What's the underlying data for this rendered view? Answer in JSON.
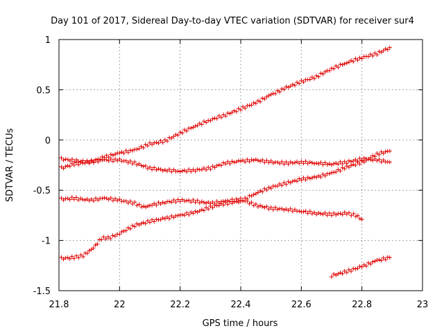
{
  "chart_data": {
    "type": "scatter",
    "title": "Day 101 of 2017, Sidereal Day-to-day VTEC variation (SDTVAR) for receiver sur4",
    "xlabel": "GPS time / hours",
    "ylabel": "SDTVAR / TECUs",
    "xlim": [
      21.8,
      23
    ],
    "ylim": [
      -1.5,
      1
    ],
    "xticks": [
      21.8,
      22,
      22.2,
      22.4,
      22.6,
      22.8,
      23
    ],
    "xtick_labels": [
      "21.8",
      "22",
      "22.2",
      "22.4",
      "22.6",
      "22.8",
      "23"
    ],
    "yticks": [
      -1.5,
      -1,
      -0.5,
      0,
      0.5,
      1
    ],
    "ytick_labels": [
      "-1.5",
      "-1",
      "-0.5",
      "0",
      "0.5",
      "1"
    ],
    "grid": true,
    "marker": "plus",
    "color": "#e00000",
    "series": [
      {
        "name": "rising",
        "points": [
          [
            21.808,
            -0.19
          ],
          [
            21.9,
            -0.22
          ],
          [
            21.95,
            -0.17
          ],
          [
            22.0,
            -0.13
          ],
          [
            22.05,
            -0.1
          ],
          [
            22.1,
            -0.04
          ],
          [
            22.15,
            -0.01
          ],
          [
            22.2,
            0.07
          ],
          [
            22.25,
            0.14
          ],
          [
            22.3,
            0.2
          ],
          [
            22.35,
            0.25
          ],
          [
            22.4,
            0.31
          ],
          [
            22.45,
            0.37
          ],
          [
            22.5,
            0.45
          ],
          [
            22.55,
            0.52
          ],
          [
            22.6,
            0.58
          ],
          [
            22.65,
            0.63
          ],
          [
            22.7,
            0.71
          ],
          [
            22.75,
            0.77
          ],
          [
            22.8,
            0.82
          ],
          [
            22.85,
            0.86
          ],
          [
            22.892,
            0.92
          ]
        ]
      },
      {
        "name": "flat-upper",
        "points": [
          [
            21.808,
            -0.28
          ],
          [
            21.85,
            -0.24
          ],
          [
            21.9,
            -0.22
          ],
          [
            21.95,
            -0.2
          ],
          [
            22.0,
            -0.2
          ],
          [
            22.05,
            -0.23
          ],
          [
            22.1,
            -0.28
          ],
          [
            22.15,
            -0.3
          ],
          [
            22.2,
            -0.31
          ],
          [
            22.25,
            -0.3
          ],
          [
            22.3,
            -0.28
          ],
          [
            22.35,
            -0.23
          ],
          [
            22.4,
            -0.21
          ],
          [
            22.45,
            -0.2
          ],
          [
            22.5,
            -0.22
          ],
          [
            22.55,
            -0.23
          ],
          [
            22.6,
            -0.22
          ],
          [
            22.65,
            -0.23
          ],
          [
            22.7,
            -0.24
          ],
          [
            22.75,
            -0.22
          ],
          [
            22.8,
            -0.19
          ],
          [
            22.85,
            -0.2
          ],
          [
            22.892,
            -0.22
          ]
        ]
      },
      {
        "name": "middle",
        "points": [
          [
            21.808,
            -0.59
          ],
          [
            21.85,
            -0.58
          ],
          [
            21.9,
            -0.6
          ],
          [
            21.95,
            -0.58
          ],
          [
            22.0,
            -0.6
          ],
          [
            22.05,
            -0.63
          ],
          [
            22.08,
            -0.67
          ],
          [
            22.1,
            -0.65
          ],
          [
            22.15,
            -0.62
          ],
          [
            22.2,
            -0.6
          ],
          [
            22.25,
            -0.61
          ],
          [
            22.3,
            -0.63
          ],
          [
            22.35,
            -0.61
          ],
          [
            22.4,
            -0.59
          ],
          [
            22.45,
            -0.65
          ],
          [
            22.5,
            -0.68
          ],
          [
            22.55,
            -0.69
          ],
          [
            22.6,
            -0.71
          ],
          [
            22.65,
            -0.73
          ],
          [
            22.7,
            -0.74
          ],
          [
            22.75,
            -0.73
          ],
          [
            22.78,
            -0.75
          ],
          [
            22.8,
            -0.79
          ]
        ]
      },
      {
        "name": "rising-lower",
        "points": [
          [
            21.808,
            -1.18
          ],
          [
            21.85,
            -1.17
          ],
          [
            21.88,
            -1.15
          ],
          [
            21.9,
            -1.11
          ],
          [
            21.92,
            -1.05
          ],
          [
            21.94,
            -0.98
          ],
          [
            21.97,
            -0.97
          ],
          [
            22.0,
            -0.93
          ],
          [
            22.05,
            -0.85
          ],
          [
            22.1,
            -0.81
          ],
          [
            22.15,
            -0.78
          ],
          [
            22.2,
            -0.75
          ],
          [
            22.25,
            -0.72
          ],
          [
            22.3,
            -0.67
          ],
          [
            22.35,
            -0.63
          ],
          [
            22.4,
            -0.61
          ],
          [
            22.45,
            -0.53
          ],
          [
            22.5,
            -0.47
          ],
          [
            22.55,
            -0.43
          ],
          [
            22.6,
            -0.39
          ],
          [
            22.65,
            -0.37
          ],
          [
            22.7,
            -0.33
          ],
          [
            22.75,
            -0.27
          ],
          [
            22.8,
            -0.22
          ],
          [
            22.85,
            -0.14
          ],
          [
            22.892,
            -0.11
          ]
        ]
      },
      {
        "name": "late-lower",
        "points": [
          [
            22.7,
            -1.35
          ],
          [
            22.75,
            -1.31
          ],
          [
            22.8,
            -1.26
          ],
          [
            22.85,
            -1.2
          ],
          [
            22.892,
            -1.17
          ]
        ]
      }
    ]
  }
}
